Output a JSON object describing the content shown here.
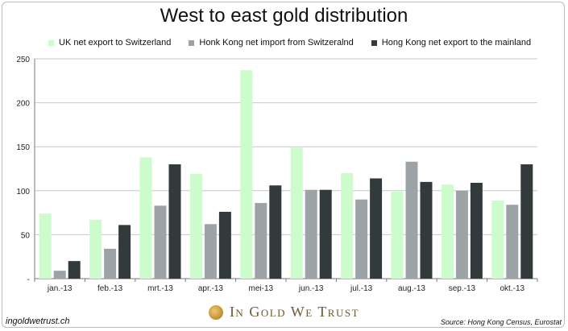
{
  "chart_data": {
    "type": "bar",
    "title": "West to east gold distribution",
    "categories": [
      "jan.-13",
      "feb.-13",
      "mrt.-13",
      "apr.-13",
      "mei-13",
      "jun.-13",
      "jul.-13",
      "aug.-13",
      "sep.-13",
      "okt.-13"
    ],
    "series": [
      {
        "name": "UK net export to Switzerland",
        "color": "#ccfccc",
        "values": [
          74,
          67,
          138,
          119,
          237,
          149,
          120,
          99,
          107,
          89
        ]
      },
      {
        "name": "Honk Kong net import from Switzeralnd",
        "color": "#9ba3a6",
        "values": [
          9,
          34,
          83,
          62,
          86,
          101,
          90,
          133,
          100,
          84
        ]
      },
      {
        "name": "Hong Kong net export to the mainland",
        "color": "#323a3c",
        "values": [
          20,
          61,
          130,
          76,
          106,
          101,
          114,
          110,
          109,
          130
        ]
      }
    ],
    "ylim": [
      0,
      250
    ],
    "yticks": [
      "-",
      "50",
      "100",
      "150",
      "200",
      "250"
    ],
    "grid": true,
    "legend": "top"
  },
  "footer": {
    "website": "ingoldwetrust.ch",
    "brand": "In Gold We Trust",
    "source": "Source: Hong Kong Census, Eurostat"
  },
  "icons": {
    "brand_logo": "gold-coin-icon"
  }
}
